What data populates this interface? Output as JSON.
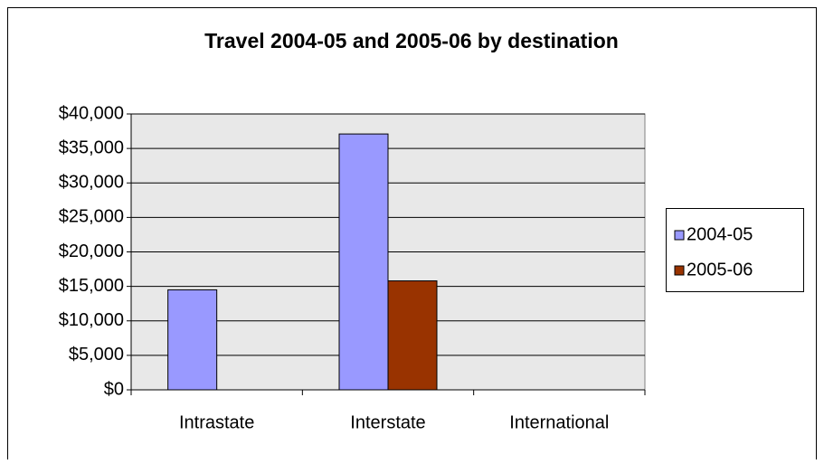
{
  "chart_data": {
    "type": "bar",
    "title": "Travel 2004-05 and 2005-06 by destination",
    "categories": [
      "Intrastate",
      "Interstate",
      "International"
    ],
    "series": [
      {
        "name": "2004-05",
        "color": "#9999ff",
        "values": [
          14500,
          37100,
          0
        ]
      },
      {
        "name": "2005-06",
        "color": "#993300",
        "values": [
          0,
          15800,
          0
        ]
      }
    ],
    "ylim": [
      0,
      40000
    ],
    "yticks": [
      {
        "value": 0,
        "label": "$0"
      },
      {
        "value": 5000,
        "label": "$5,000"
      },
      {
        "value": 10000,
        "label": "$10,000"
      },
      {
        "value": 15000,
        "label": "$15,000"
      },
      {
        "value": 20000,
        "label": "$20,000"
      },
      {
        "value": 25000,
        "label": "$25,000"
      },
      {
        "value": 30000,
        "label": "$30,000"
      },
      {
        "value": 35000,
        "label": "$35,000"
      },
      {
        "value": 40000,
        "label": "$40,000"
      }
    ],
    "grid": true,
    "legend": "right"
  }
}
